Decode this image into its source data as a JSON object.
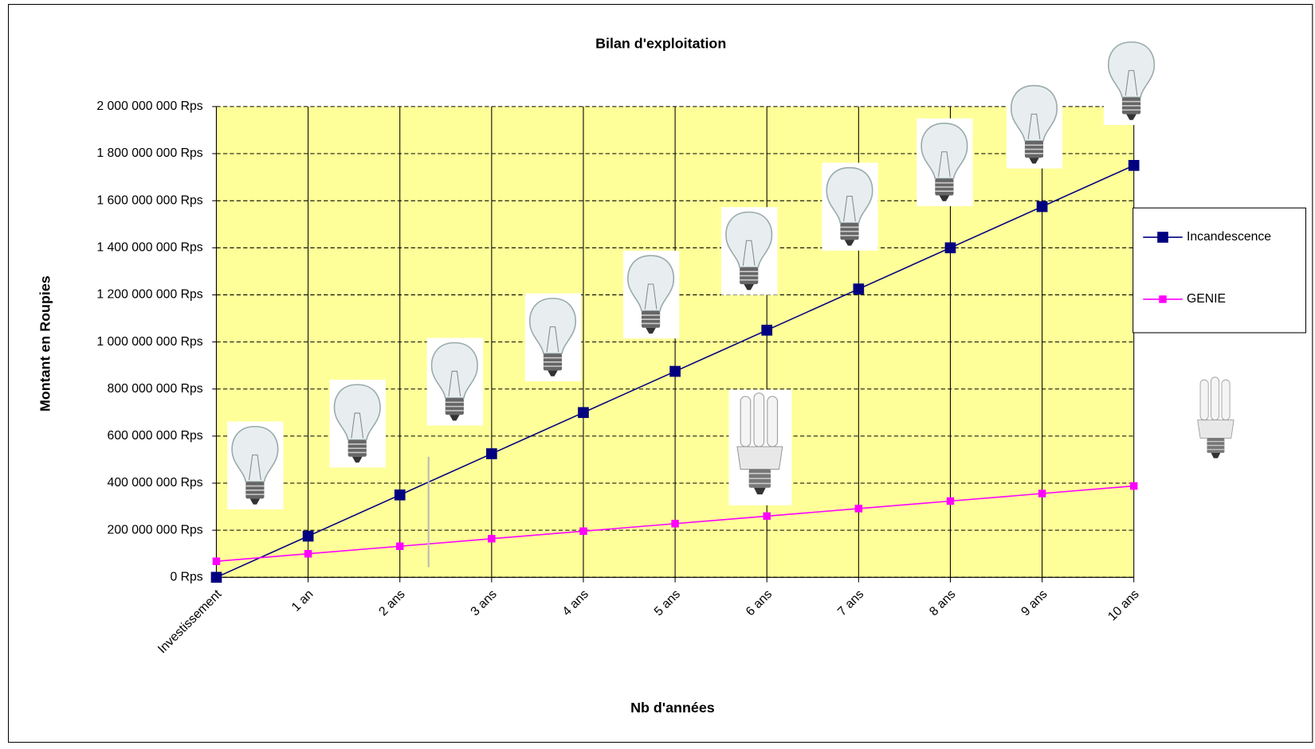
{
  "chart_data": {
    "type": "line",
    "title": "Bilan d'exploitation",
    "x_label": "Nb d'années",
    "y_label": "Montant en Roupies",
    "categories": [
      "Investissement",
      "1 an",
      "2 ans",
      "3 ans",
      "4 ans",
      "5 ans",
      "6 ans",
      "7 ans",
      "8 ans",
      "9 ans",
      "10 ans"
    ],
    "series": [
      {
        "name": "Incandescence",
        "color": "#000080",
        "values": [
          0,
          175000000,
          350000000,
          525000000,
          700000000,
          875000000,
          1050000000,
          1225000000,
          1400000000,
          1575000000,
          1750000000
        ]
      },
      {
        "name": "GENIE",
        "color": "#ff00ff",
        "values": [
          68000000,
          100000000,
          132000000,
          164000000,
          196000000,
          228000000,
          260000000,
          292000000,
          324000000,
          356000000,
          388000000
        ]
      }
    ],
    "ylim": [
      0,
      2000000000
    ],
    "yticks": [
      {
        "value": 0,
        "label": "0 Rps"
      },
      {
        "value": 200000000,
        "label": "200 000 000 Rps"
      },
      {
        "value": 400000000,
        "label": "400 000 000 Rps"
      },
      {
        "value": 600000000,
        "label": "600 000 000 Rps"
      },
      {
        "value": 800000000,
        "label": "800 000 000 Rps"
      },
      {
        "value": 1000000000,
        "label": "1 000 000 000 Rps"
      },
      {
        "value": 1200000000,
        "label": "1 200 000 000 Rps"
      },
      {
        "value": 1400000000,
        "label": "1 400 000 000 Rps"
      },
      {
        "value": 1600000000,
        "label": "1 600 000 000 Rps"
      },
      {
        "value": 1800000000,
        "label": "1 800 000 000 Rps"
      },
      {
        "value": 2000000000,
        "label": "2 000 000 000 Rps"
      }
    ],
    "grid": true,
    "plot_background": "#ffff99",
    "legend": "right"
  }
}
